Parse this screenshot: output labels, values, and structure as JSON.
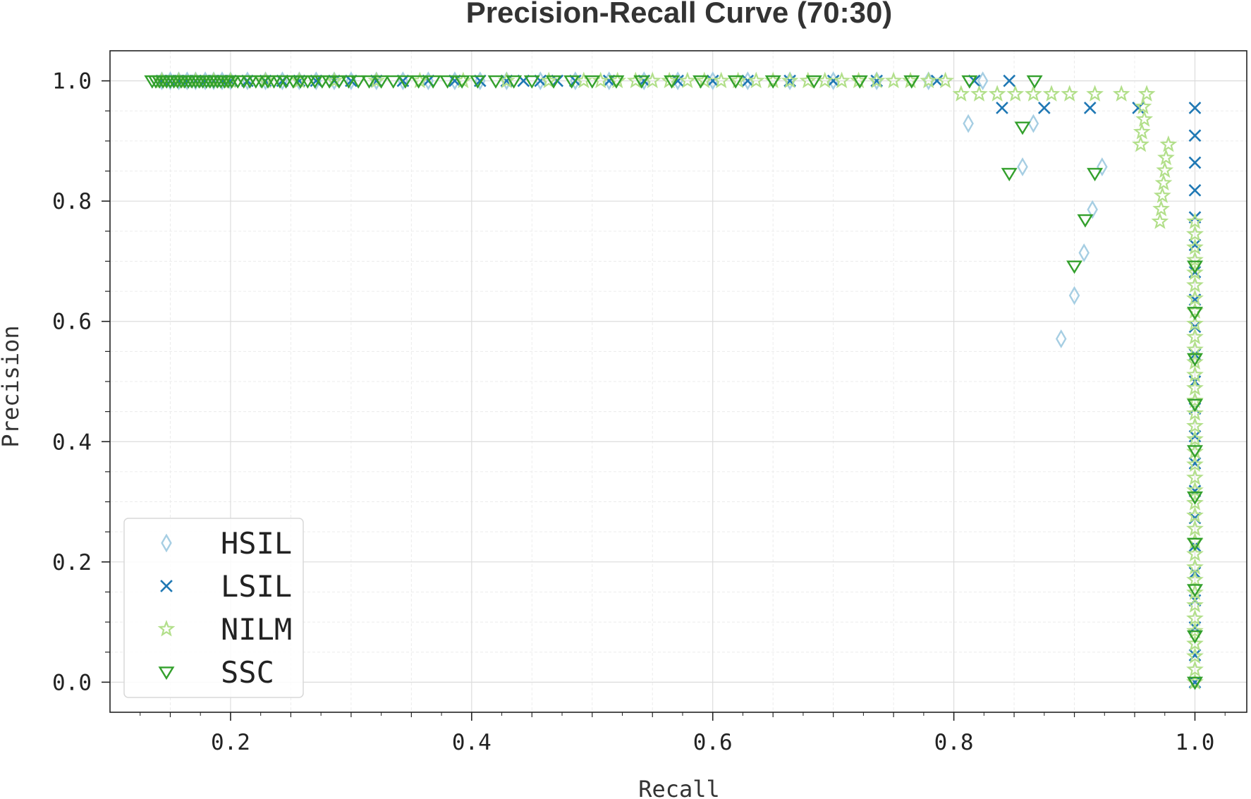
{
  "chart_data": {
    "type": "scatter",
    "title": "Precision-Recall Curve (70:30)",
    "xlabel": "Recall",
    "ylabel": "Precision",
    "xlim": [
      0.1,
      1.043
    ],
    "ylim": [
      -0.05,
      1.05
    ],
    "xticks": [
      "0.2",
      "0.4",
      "0.6",
      "0.8",
      "1.0"
    ],
    "yticks": [
      "0.0",
      "0.2",
      "0.4",
      "0.6",
      "0.8",
      "1.0"
    ],
    "grid": true,
    "legend_position": "lower-left",
    "series": [
      {
        "name": "HSIL",
        "marker": "thin-diamond",
        "color": "#a6cee3",
        "points": [
          [
            0.143,
            1.0
          ],
          [
            0.15,
            1.0
          ],
          [
            0.157,
            1.0
          ],
          [
            0.164,
            1.0
          ],
          [
            0.171,
            1.0
          ],
          [
            0.179,
            1.0
          ],
          [
            0.186,
            1.0
          ],
          [
            0.193,
            1.0
          ],
          [
            0.2,
            1.0
          ],
          [
            0.214,
            1.0
          ],
          [
            0.229,
            1.0
          ],
          [
            0.243,
            1.0
          ],
          [
            0.257,
            1.0
          ],
          [
            0.271,
            1.0
          ],
          [
            0.286,
            1.0
          ],
          [
            0.3,
            1.0
          ],
          [
            0.321,
            1.0
          ],
          [
            0.343,
            1.0
          ],
          [
            0.364,
            1.0
          ],
          [
            0.386,
            1.0
          ],
          [
            0.407,
            1.0
          ],
          [
            0.429,
            1.0
          ],
          [
            0.457,
            1.0
          ],
          [
            0.486,
            1.0
          ],
          [
            0.514,
            1.0
          ],
          [
            0.543,
            1.0
          ],
          [
            0.571,
            1.0
          ],
          [
            0.6,
            1.0
          ],
          [
            0.629,
            1.0
          ],
          [
            0.664,
            1.0
          ],
          [
            0.7,
            1.0
          ],
          [
            0.736,
            1.0
          ],
          [
            0.779,
            1.0
          ],
          [
            0.824,
            1.0
          ],
          [
            0.812,
            0.929
          ],
          [
            0.866,
            0.929
          ],
          [
            0.857,
            0.857
          ],
          [
            0.923,
            0.857
          ],
          [
            0.915,
            0.786
          ],
          [
            0.908,
            0.714
          ],
          [
            0.9,
            0.643
          ],
          [
            0.889,
            0.571
          ]
        ]
      },
      {
        "name": "LSIL",
        "marker": "x",
        "color": "#1f78b4",
        "points": [
          [
            0.143,
            1.0
          ],
          [
            0.15,
            1.0
          ],
          [
            0.157,
            1.0
          ],
          [
            0.164,
            1.0
          ],
          [
            0.171,
            1.0
          ],
          [
            0.179,
            1.0
          ],
          [
            0.186,
            1.0
          ],
          [
            0.193,
            1.0
          ],
          [
            0.2,
            1.0
          ],
          [
            0.214,
            1.0
          ],
          [
            0.229,
            1.0
          ],
          [
            0.243,
            1.0
          ],
          [
            0.257,
            1.0
          ],
          [
            0.271,
            1.0
          ],
          [
            0.286,
            1.0
          ],
          [
            0.3,
            1.0
          ],
          [
            0.321,
            1.0
          ],
          [
            0.343,
            1.0
          ],
          [
            0.364,
            1.0
          ],
          [
            0.386,
            1.0
          ],
          [
            0.407,
            1.0
          ],
          [
            0.429,
            1.0
          ],
          [
            0.443,
            1.0
          ],
          [
            0.457,
            1.0
          ],
          [
            0.471,
            1.0
          ],
          [
            0.486,
            1.0
          ],
          [
            0.514,
            1.0
          ],
          [
            0.543,
            1.0
          ],
          [
            0.571,
            1.0
          ],
          [
            0.6,
            1.0
          ],
          [
            0.629,
            1.0
          ],
          [
            0.664,
            1.0
          ],
          [
            0.7,
            1.0
          ],
          [
            0.736,
            1.0
          ],
          [
            0.786,
            1.0
          ],
          [
            0.817,
            1.0
          ],
          [
            0.846,
            1.0
          ],
          [
            0.84,
            0.955
          ],
          [
            0.875,
            0.955
          ],
          [
            0.913,
            0.955
          ],
          [
            0.953,
            0.955
          ],
          [
            1.0,
            0.955
          ],
          [
            1.0,
            0.909
          ],
          [
            1.0,
            0.864
          ],
          [
            1.0,
            0.818
          ],
          [
            1.0,
            0.773
          ],
          [
            1.0,
            0.727
          ],
          [
            1.0,
            0.682
          ],
          [
            1.0,
            0.636
          ],
          [
            1.0,
            0.591
          ],
          [
            1.0,
            0.545
          ],
          [
            1.0,
            0.5
          ],
          [
            1.0,
            0.455
          ],
          [
            1.0,
            0.409
          ],
          [
            1.0,
            0.364
          ],
          [
            1.0,
            0.318
          ],
          [
            1.0,
            0.273
          ],
          [
            1.0,
            0.227
          ],
          [
            1.0,
            0.182
          ],
          [
            1.0,
            0.136
          ],
          [
            1.0,
            0.091
          ],
          [
            1.0,
            0.045
          ],
          [
            1.0,
            0.0
          ]
        ]
      },
      {
        "name": "NILM",
        "marker": "star",
        "color": "#b2df8a",
        "points": [
          [
            0.143,
            1.0
          ],
          [
            0.157,
            1.0
          ],
          [
            0.171,
            1.0
          ],
          [
            0.186,
            1.0
          ],
          [
            0.2,
            1.0
          ],
          [
            0.229,
            1.0
          ],
          [
            0.257,
            1.0
          ],
          [
            0.286,
            1.0
          ],
          [
            0.321,
            1.0
          ],
          [
            0.357,
            1.0
          ],
          [
            0.393,
            1.0
          ],
          [
            0.429,
            1.0
          ],
          [
            0.464,
            1.0
          ],
          [
            0.493,
            1.0
          ],
          [
            0.507,
            1.0
          ],
          [
            0.521,
            1.0
          ],
          [
            0.536,
            1.0
          ],
          [
            0.55,
            1.0
          ],
          [
            0.564,
            1.0
          ],
          [
            0.579,
            1.0
          ],
          [
            0.593,
            1.0
          ],
          [
            0.607,
            1.0
          ],
          [
            0.621,
            1.0
          ],
          [
            0.636,
            1.0
          ],
          [
            0.65,
            1.0
          ],
          [
            0.664,
            1.0
          ],
          [
            0.679,
            1.0
          ],
          [
            0.693,
            1.0
          ],
          [
            0.707,
            1.0
          ],
          [
            0.721,
            1.0
          ],
          [
            0.736,
            1.0
          ],
          [
            0.75,
            1.0
          ],
          [
            0.764,
            1.0
          ],
          [
            0.779,
            1.0
          ],
          [
            0.793,
            1.0
          ],
          [
            0.806,
            0.978
          ],
          [
            0.821,
            0.978
          ],
          [
            0.836,
            0.978
          ],
          [
            0.851,
            0.978
          ],
          [
            0.866,
            0.978
          ],
          [
            0.881,
            0.978
          ],
          [
            0.896,
            0.978
          ],
          [
            0.917,
            0.978
          ],
          [
            0.939,
            0.978
          ],
          [
            0.96,
            0.978
          ],
          [
            0.957,
            0.957
          ],
          [
            0.958,
            0.936
          ],
          [
            0.956,
            0.915
          ],
          [
            0.955,
            0.894
          ],
          [
            0.978,
            0.894
          ],
          [
            0.976,
            0.872
          ],
          [
            0.975,
            0.851
          ],
          [
            0.974,
            0.83
          ],
          [
            0.973,
            0.809
          ],
          [
            0.972,
            0.787
          ],
          [
            0.971,
            0.766
          ],
          [
            1.0,
            0.766
          ],
          [
            1.0,
            0.745
          ],
          [
            1.0,
            0.723
          ],
          [
            1.0,
            0.702
          ],
          [
            1.0,
            0.681
          ],
          [
            1.0,
            0.66
          ],
          [
            1.0,
            0.638
          ],
          [
            1.0,
            0.617
          ],
          [
            1.0,
            0.596
          ],
          [
            1.0,
            0.574
          ],
          [
            1.0,
            0.553
          ],
          [
            1.0,
            0.532
          ],
          [
            1.0,
            0.511
          ],
          [
            1.0,
            0.489
          ],
          [
            1.0,
            0.468
          ],
          [
            1.0,
            0.447
          ],
          [
            1.0,
            0.426
          ],
          [
            1.0,
            0.404
          ],
          [
            1.0,
            0.383
          ],
          [
            1.0,
            0.362
          ],
          [
            1.0,
            0.34
          ],
          [
            1.0,
            0.319
          ],
          [
            1.0,
            0.298
          ],
          [
            1.0,
            0.277
          ],
          [
            1.0,
            0.255
          ],
          [
            1.0,
            0.234
          ],
          [
            1.0,
            0.213
          ],
          [
            1.0,
            0.191
          ],
          [
            1.0,
            0.17
          ],
          [
            1.0,
            0.149
          ],
          [
            1.0,
            0.128
          ],
          [
            1.0,
            0.106
          ],
          [
            1.0,
            0.085
          ],
          [
            1.0,
            0.064
          ],
          [
            1.0,
            0.043
          ],
          [
            1.0,
            0.021
          ],
          [
            1.0,
            0.0
          ]
        ]
      },
      {
        "name": "SSC",
        "marker": "triangle-down",
        "color": "#33a02c",
        "points": [
          [
            0.135,
            1.0
          ],
          [
            0.138,
            1.0
          ],
          [
            0.141,
            1.0
          ],
          [
            0.144,
            1.0
          ],
          [
            0.147,
            1.0
          ],
          [
            0.15,
            1.0
          ],
          [
            0.153,
            1.0
          ],
          [
            0.156,
            1.0
          ],
          [
            0.159,
            1.0
          ],
          [
            0.162,
            1.0
          ],
          [
            0.165,
            1.0
          ],
          [
            0.168,
            1.0
          ],
          [
            0.171,
            1.0
          ],
          [
            0.174,
            1.0
          ],
          [
            0.177,
            1.0
          ],
          [
            0.18,
            1.0
          ],
          [
            0.183,
            1.0
          ],
          [
            0.186,
            1.0
          ],
          [
            0.189,
            1.0
          ],
          [
            0.192,
            1.0
          ],
          [
            0.195,
            1.0
          ],
          [
            0.198,
            1.0
          ],
          [
            0.201,
            1.0
          ],
          [
            0.206,
            1.0
          ],
          [
            0.211,
            1.0
          ],
          [
            0.216,
            1.0
          ],
          [
            0.221,
            1.0
          ],
          [
            0.226,
            1.0
          ],
          [
            0.231,
            1.0
          ],
          [
            0.236,
            1.0
          ],
          [
            0.241,
            1.0
          ],
          [
            0.246,
            1.0
          ],
          [
            0.252,
            1.0
          ],
          [
            0.258,
            1.0
          ],
          [
            0.264,
            1.0
          ],
          [
            0.27,
            1.0
          ],
          [
            0.276,
            1.0
          ],
          [
            0.282,
            1.0
          ],
          [
            0.29,
            1.0
          ],
          [
            0.298,
            1.0
          ],
          [
            0.306,
            1.0
          ],
          [
            0.315,
            1.0
          ],
          [
            0.325,
            1.0
          ],
          [
            0.335,
            1.0
          ],
          [
            0.345,
            1.0
          ],
          [
            0.356,
            1.0
          ],
          [
            0.368,
            1.0
          ],
          [
            0.38,
            1.0
          ],
          [
            0.392,
            1.0
          ],
          [
            0.405,
            1.0
          ],
          [
            0.42,
            1.0
          ],
          [
            0.435,
            1.0
          ],
          [
            0.45,
            1.0
          ],
          [
            0.468,
            1.0
          ],
          [
            0.483,
            1.0
          ],
          [
            0.5,
            1.0
          ],
          [
            0.52,
            1.0
          ],
          [
            0.541,
            1.0
          ],
          [
            0.566,
            1.0
          ],
          [
            0.59,
            1.0
          ],
          [
            0.619,
            1.0
          ],
          [
            0.65,
            1.0
          ],
          [
            0.684,
            1.0
          ],
          [
            0.722,
            1.0
          ],
          [
            0.765,
            1.0
          ],
          [
            0.813,
            1.0
          ],
          [
            0.867,
            1.0
          ],
          [
            0.857,
            0.923
          ],
          [
            0.846,
            0.846
          ],
          [
            0.917,
            0.846
          ],
          [
            0.909,
            0.769
          ],
          [
            0.9,
            0.692
          ],
          [
            1.0,
            0.692
          ],
          [
            1.0,
            0.615
          ],
          [
            1.0,
            0.538
          ],
          [
            1.0,
            0.462
          ],
          [
            1.0,
            0.385
          ],
          [
            1.0,
            0.308
          ],
          [
            1.0,
            0.231
          ],
          [
            1.0,
            0.154
          ],
          [
            1.0,
            0.077
          ],
          [
            1.0,
            0.0
          ]
        ]
      }
    ]
  }
}
